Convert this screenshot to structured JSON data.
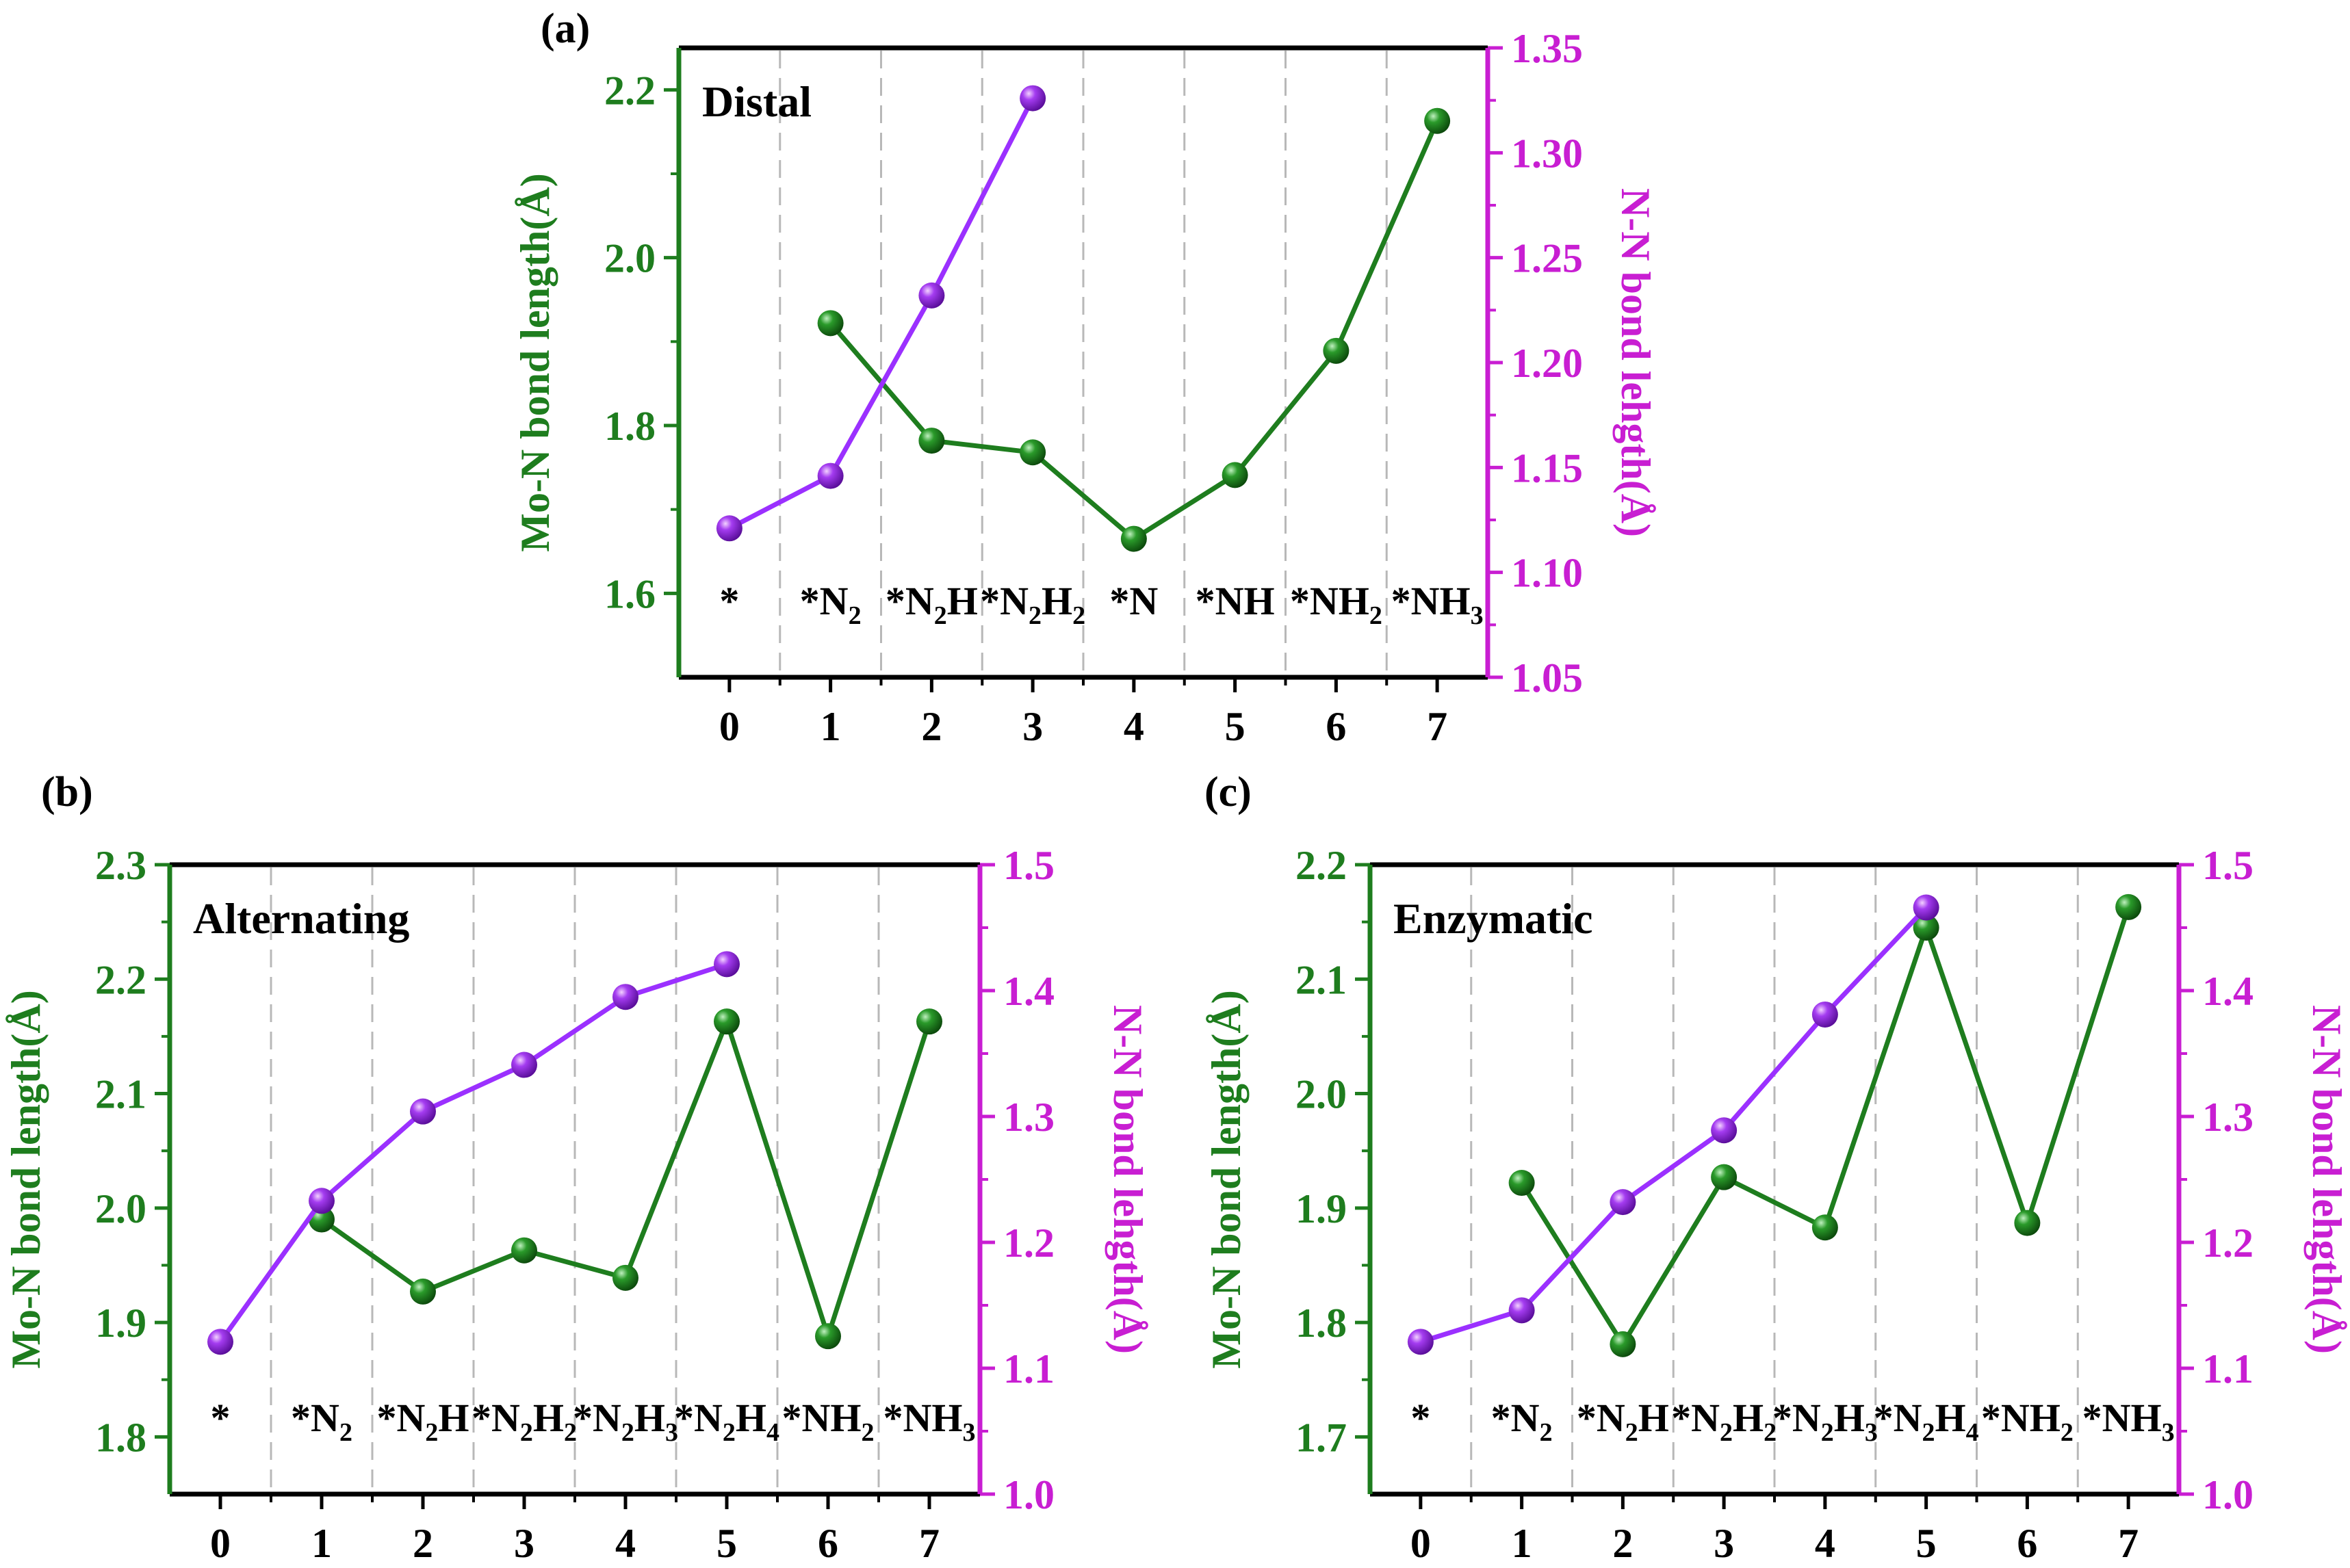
{
  "colors": {
    "mo_n": "#1e7d1e",
    "n_n": "#c81ed2",
    "n_n_line": "#9b30ff",
    "axis": "#000000",
    "grid": "#b8b8b8"
  },
  "chart_data": [
    {
      "type": "line",
      "panel_label": "(a)",
      "title": "Distal",
      "ylabel_left": "Mo-N bond length(Å)",
      "ylabel_right": "N-N bond lehgth(Å)",
      "xlim": [
        -0.5,
        7.5
      ],
      "ylim_left": [
        1.5,
        2.25
      ],
      "ylim_right": [
        1.05,
        1.35
      ],
      "x_ticks": [
        "0",
        "1",
        "2",
        "3",
        "4",
        "5",
        "6",
        "7"
      ],
      "y_ticks_left": [
        "1.6",
        "1.8",
        "2.0",
        "2.2"
      ],
      "y_ticks_right": [
        "1.05",
        "1.10",
        "1.15",
        "1.20",
        "1.25",
        "1.30",
        "1.35"
      ],
      "species": [
        {
          "base": "*",
          "sub": ""
        },
        {
          "base": "*N",
          "sub": "2"
        },
        {
          "base": "*N",
          "sub": "2",
          "tail": "H"
        },
        {
          "base": "*N",
          "sub": "2",
          "tail": "H",
          "sub2": "2"
        },
        {
          "base": "*N",
          "sub": ""
        },
        {
          "base": "*NH",
          "sub": ""
        },
        {
          "base": "*NH",
          "sub": "2"
        },
        {
          "base": "*NH",
          "sub": "3"
        }
      ],
      "series": [
        {
          "name": "Mo-N bond length",
          "axis": "left",
          "x": [
            1,
            2,
            3,
            4,
            5,
            6,
            7
          ],
          "values": [
            1.922,
            1.782,
            1.768,
            1.665,
            1.741,
            1.889,
            2.163
          ]
        },
        {
          "name": "N-N bond length",
          "axis": "right",
          "x": [
            0,
            1,
            2,
            3
          ],
          "values": [
            1.121,
            1.146,
            1.232,
            1.326
          ]
        }
      ]
    },
    {
      "type": "line",
      "panel_label": "(b)",
      "title": "Alternating",
      "ylabel_left": "Mo-N bond length(Å)",
      "ylabel_right": "N-N bond lehgth(Å)",
      "xlim": [
        -0.5,
        7.5
      ],
      "ylim_left": [
        1.75,
        2.3
      ],
      "ylim_right": [
        1.0,
        1.5
      ],
      "x_ticks": [
        "0",
        "1",
        "2",
        "3",
        "4",
        "5",
        "6",
        "7"
      ],
      "y_ticks_left": [
        "1.8",
        "1.9",
        "2.0",
        "2.1",
        "2.2",
        "2.3"
      ],
      "y_ticks_right": [
        "1.0",
        "1.1",
        "1.2",
        "1.3",
        "1.4",
        "1.5"
      ],
      "species": [
        {
          "base": "*",
          "sub": ""
        },
        {
          "base": "*N",
          "sub": "2"
        },
        {
          "base": "*N",
          "sub": "2",
          "tail": "H"
        },
        {
          "base": "*N",
          "sub": "2",
          "tail": "H",
          "sub2": "2"
        },
        {
          "base": "*N",
          "sub": "2",
          "tail": "H",
          "sub2": "3"
        },
        {
          "base": "*N",
          "sub": "2",
          "tail": "H",
          "sub2": "4"
        },
        {
          "base": "*NH",
          "sub": "2"
        },
        {
          "base": "*NH",
          "sub": "3"
        }
      ],
      "series": [
        {
          "name": "Mo-N bond length",
          "axis": "left",
          "x": [
            1,
            2,
            3,
            4,
            5,
            6,
            7
          ],
          "values": [
            1.99,
            1.927,
            1.963,
            1.939,
            2.163,
            1.888,
            2.163
          ]
        },
        {
          "name": "N-N bond length",
          "axis": "right",
          "x": [
            0,
            1,
            2,
            3,
            4,
            5
          ],
          "values": [
            1.121,
            1.233,
            1.304,
            1.341,
            1.395,
            1.421
          ]
        }
      ]
    },
    {
      "type": "line",
      "panel_label": "(c)",
      "title": "Enzymatic",
      "ylabel_left": "Mo-N bond length(Å)",
      "ylabel_right": "N-N bond lehgth(Å)",
      "xlim": [
        -0.5,
        7.5
      ],
      "ylim_left": [
        1.65,
        2.2
      ],
      "ylim_right": [
        1.0,
        1.5
      ],
      "x_ticks": [
        "0",
        "1",
        "2",
        "3",
        "4",
        "5",
        "6",
        "7"
      ],
      "y_ticks_left": [
        "1.7",
        "1.8",
        "1.9",
        "2.0",
        "2.1",
        "2.2"
      ],
      "y_ticks_right": [
        "1.0",
        "1.1",
        "1.2",
        "1.3",
        "1.4",
        "1.5"
      ],
      "species": [
        {
          "base": "*",
          "sub": ""
        },
        {
          "base": "*N",
          "sub": "2"
        },
        {
          "base": "*N",
          "sub": "2",
          "tail": "H"
        },
        {
          "base": "*N",
          "sub": "2",
          "tail": "H",
          "sub2": "2"
        },
        {
          "base": "*N",
          "sub": "2",
          "tail": "H",
          "sub2": "3"
        },
        {
          "base": "*N",
          "sub": "2",
          "tail": "H",
          "sub2": "4"
        },
        {
          "base": "*NH",
          "sub": "2"
        },
        {
          "base": "*NH",
          "sub": "3"
        }
      ],
      "series": [
        {
          "name": "Mo-N bond length",
          "axis": "left",
          "x": [
            1,
            2,
            3,
            4,
            5,
            6,
            7
          ],
          "values": [
            1.922,
            1.781,
            1.927,
            1.883,
            2.145,
            1.887,
            2.163
          ]
        },
        {
          "name": "N-N bond length",
          "axis": "right",
          "x": [
            0,
            1,
            2,
            3,
            4,
            5
          ],
          "values": [
            1.121,
            1.146,
            1.232,
            1.289,
            1.381,
            1.466
          ]
        }
      ]
    }
  ]
}
